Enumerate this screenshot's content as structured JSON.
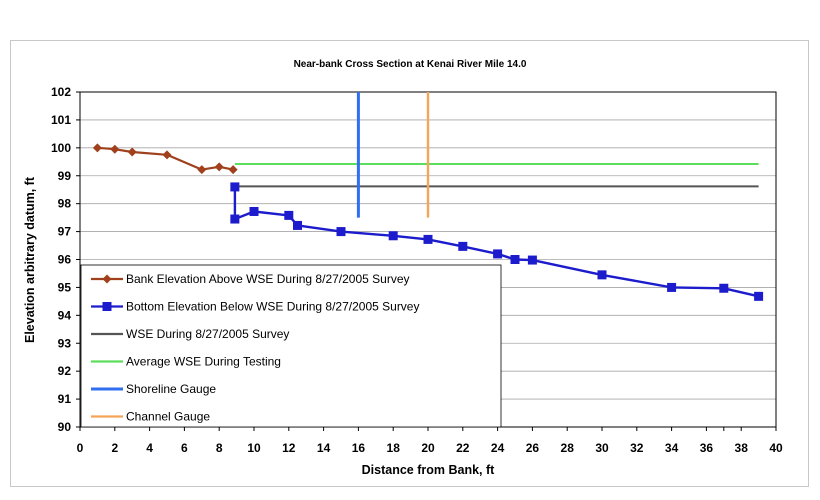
{
  "chart_data": {
    "type": "line",
    "title": "Near-bank Cross Section at Kenai River Mile 14.0",
    "xlabel": "Distance from Bank, ft",
    "ylabel": "Elevation arbitrary datum, ft",
    "xlim": [
      0,
      40
    ],
    "ylim": [
      90,
      102
    ],
    "xticks": [
      0,
      2,
      4,
      6,
      8,
      10,
      12,
      14,
      16,
      18,
      20,
      22,
      24,
      26,
      28,
      30,
      32,
      34,
      36,
      37,
      38,
      40
    ],
    "xtick_labels": [
      "0",
      "2",
      "4",
      "6",
      "8",
      "10",
      "12",
      "14",
      "16",
      "18",
      "20",
      "22",
      "24",
      "26",
      "28",
      "30",
      "32",
      "34",
      "36",
      "",
      "38",
      "40"
    ],
    "yticks": [
      90,
      91,
      92,
      93,
      94,
      95,
      96,
      97,
      98,
      99,
      100,
      101,
      102
    ],
    "grid": "horizontal",
    "legend_position": "lower-left",
    "series": [
      {
        "name": "Bank Elevation Above WSE During 8/27/2005 Survey",
        "color": "#a0401c",
        "marker": "diamond",
        "x": [
          1,
          2,
          3,
          5,
          7,
          8,
          8.8
        ],
        "y": [
          100.0,
          99.95,
          99.85,
          99.75,
          99.22,
          99.32,
          99.22
        ]
      },
      {
        "name": "Bottom Elevation Below WSE During 8/27/2005 Survey",
        "color": "#1c1ccc",
        "marker": "square",
        "x": [
          8.9,
          8.9,
          10,
          12,
          12.5,
          15,
          18,
          20,
          22,
          24,
          25,
          26,
          30,
          34,
          37,
          39
        ],
        "y": [
          98.6,
          97.45,
          97.72,
          97.58,
          97.22,
          97.0,
          96.85,
          96.72,
          96.47,
          96.2,
          96.0,
          95.98,
          95.45,
          95.0,
          94.97,
          94.68
        ]
      },
      {
        "name": "WSE During 8/27/2005 Survey",
        "color": "#555555",
        "marker": "none",
        "x": [
          8.9,
          39
        ],
        "y": [
          98.62,
          98.62
        ]
      },
      {
        "name": "Average WSE During Testing",
        "color": "#5cde5c",
        "marker": "none",
        "x": [
          8.9,
          39
        ],
        "y": [
          99.42,
          99.42
        ]
      },
      {
        "name": "Shoreline Gauge",
        "color": "#2f6ff0",
        "marker": "none",
        "x": [
          16,
          16
        ],
        "y": [
          97.5,
          102
        ]
      },
      {
        "name": "Channel Gauge",
        "color": "#f5a55a",
        "marker": "none",
        "x": [
          20,
          20
        ],
        "y": [
          97.5,
          102
        ]
      }
    ]
  }
}
